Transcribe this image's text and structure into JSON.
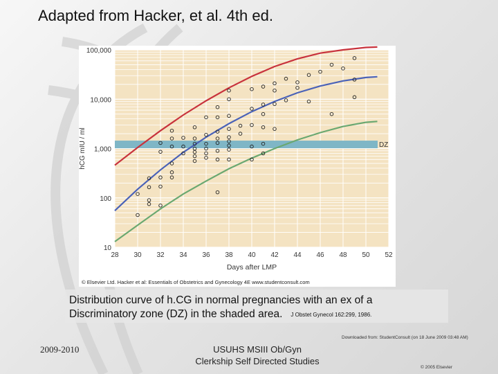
{
  "slide": {
    "title": "Adapted from Hacker, et al. 4th ed.",
    "caption_line1": "Distribution curve of h.CG in normal pregnancies with an ex of a",
    "caption_line2": "Discriminatory zone (DZ) in the shaded area.",
    "caption_ref": "J Obstet Gynecol 162:299, 1986.",
    "downloaded_note": "Downloaded from: StudentConsult (on 18 June 2009 03:48 AM)",
    "footer_year": "2009-2010",
    "footer_center_line1": "USUHS MSIII Ob/Gyn",
    "footer_center_line2": "Clerkship Self Directed Studies",
    "footer_copyright": "© 2005 Elsevier"
  },
  "chart_data": {
    "type": "scatter",
    "xlabel": "Days after LMP",
    "ylabel": "hCG mIU / ml",
    "xlim": [
      28,
      52
    ],
    "ylim": [
      10,
      100000
    ],
    "y_scale": "log",
    "x_ticks": [
      "28",
      "30",
      "32",
      "34",
      "36",
      "38",
      "40",
      "42",
      "44",
      "46",
      "48",
      "50",
      "52"
    ],
    "y_ticks": [
      {
        "value": 100000,
        "label": "100,000"
      },
      {
        "value": 10000,
        "label": "10,000"
      },
      {
        "value": 1000,
        "label": "1,000"
      },
      {
        "value": 100,
        "label": "100"
      },
      {
        "value": 10,
        "label": "10"
      }
    ],
    "grid": true,
    "shaded_band": {
      "label": "DZ",
      "y_range": [
        1000,
        2000
      ],
      "color": "#7fb6c6"
    },
    "copyright_line": "© Elsevier Ltd. Hacker et al: Essentials of Obstetrics and Gynecology 4E www.studentconsult.com",
    "curves": [
      {
        "color": "#c8323c",
        "x": [
          28,
          30,
          32,
          34,
          36,
          38,
          40,
          42,
          44,
          46,
          48,
          50,
          51
        ],
        "y": [
          460,
          1050,
          2300,
          4800,
          9300,
          17000,
          29000,
          46000,
          66000,
          86000,
          100000,
          112000,
          114000
        ]
      },
      {
        "color": "#4a62b8",
        "x": [
          28,
          30,
          32,
          34,
          36,
          38,
          40,
          42,
          44,
          46,
          48,
          50,
          51
        ],
        "y": [
          55,
          150,
          370,
          840,
          1700,
          3200,
          5600,
          9000,
          13500,
          18500,
          23500,
          27500,
          28500
        ]
      },
      {
        "color": "#6aa870",
        "x": [
          28,
          30,
          32,
          34,
          36,
          38,
          40,
          42,
          44,
          46,
          48,
          50,
          51
        ],
        "y": [
          13,
          28,
          60,
          120,
          220,
          390,
          640,
          1000,
          1500,
          2100,
          2800,
          3400,
          3550
        ]
      }
    ],
    "points": [
      {
        "x": 30,
        "y": 45
      },
      {
        "x": 30,
        "y": 120
      },
      {
        "x": 31,
        "y": 250
      },
      {
        "x": 31,
        "y": 165
      },
      {
        "x": 31,
        "y": 90
      },
      {
        "x": 31,
        "y": 75
      },
      {
        "x": 32,
        "y": 860
      },
      {
        "x": 32,
        "y": 1300
      },
      {
        "x": 32,
        "y": 260
      },
      {
        "x": 32,
        "y": 170
      },
      {
        "x": 32,
        "y": 70
      },
      {
        "x": 33,
        "y": 2300
      },
      {
        "x": 33,
        "y": 1600
      },
      {
        "x": 33,
        "y": 1100
      },
      {
        "x": 33,
        "y": 500
      },
      {
        "x": 33,
        "y": 330
      },
      {
        "x": 33,
        "y": 260
      },
      {
        "x": 34,
        "y": 1650
      },
      {
        "x": 34,
        "y": 1100
      },
      {
        "x": 34,
        "y": 800
      },
      {
        "x": 35,
        "y": 2700
      },
      {
        "x": 35,
        "y": 1600
      },
      {
        "x": 35,
        "y": 1250
      },
      {
        "x": 35,
        "y": 1000
      },
      {
        "x": 35,
        "y": 850
      },
      {
        "x": 35,
        "y": 700
      },
      {
        "x": 35,
        "y": 560
      },
      {
        "x": 36,
        "y": 4300
      },
      {
        "x": 36,
        "y": 1900
      },
      {
        "x": 36,
        "y": 1250
      },
      {
        "x": 36,
        "y": 1000
      },
      {
        "x": 36,
        "y": 800
      },
      {
        "x": 36,
        "y": 650
      },
      {
        "x": 37,
        "y": 6900
      },
      {
        "x": 37,
        "y": 4300
      },
      {
        "x": 37,
        "y": 2200
      },
      {
        "x": 37,
        "y": 1600
      },
      {
        "x": 37,
        "y": 1300
      },
      {
        "x": 37,
        "y": 900
      },
      {
        "x": 37,
        "y": 600
      },
      {
        "x": 37,
        "y": 130
      },
      {
        "x": 38,
        "y": 15000
      },
      {
        "x": 38,
        "y": 10000
      },
      {
        "x": 38,
        "y": 4600
      },
      {
        "x": 38,
        "y": 2500
      },
      {
        "x": 38,
        "y": 1700
      },
      {
        "x": 38,
        "y": 1400
      },
      {
        "x": 38,
        "y": 1150
      },
      {
        "x": 38,
        "y": 950
      },
      {
        "x": 38,
        "y": 600
      },
      {
        "x": 39,
        "y": 2900
      },
      {
        "x": 39,
        "y": 2000
      },
      {
        "x": 40,
        "y": 16000
      },
      {
        "x": 40,
        "y": 6400
      },
      {
        "x": 40,
        "y": 3000
      },
      {
        "x": 40,
        "y": 1100
      },
      {
        "x": 40,
        "y": 600
      },
      {
        "x": 41,
        "y": 18000
      },
      {
        "x": 41,
        "y": 7800
      },
      {
        "x": 41,
        "y": 5000
      },
      {
        "x": 41,
        "y": 2700
      },
      {
        "x": 41,
        "y": 1250
      },
      {
        "x": 41,
        "y": 800
      },
      {
        "x": 42,
        "y": 21000
      },
      {
        "x": 42,
        "y": 15000
      },
      {
        "x": 42,
        "y": 8000
      },
      {
        "x": 42,
        "y": 2500
      },
      {
        "x": 43,
        "y": 26000
      },
      {
        "x": 43,
        "y": 9500
      },
      {
        "x": 44,
        "y": 22000
      },
      {
        "x": 44,
        "y": 17000
      },
      {
        "x": 45,
        "y": 31000
      },
      {
        "x": 45,
        "y": 9000
      },
      {
        "x": 46,
        "y": 36000
      },
      {
        "x": 47,
        "y": 50000
      },
      {
        "x": 47,
        "y": 5000
      },
      {
        "x": 48,
        "y": 42000
      },
      {
        "x": 49,
        "y": 68000
      },
      {
        "x": 49,
        "y": 25000
      },
      {
        "x": 49,
        "y": 11000
      }
    ]
  }
}
